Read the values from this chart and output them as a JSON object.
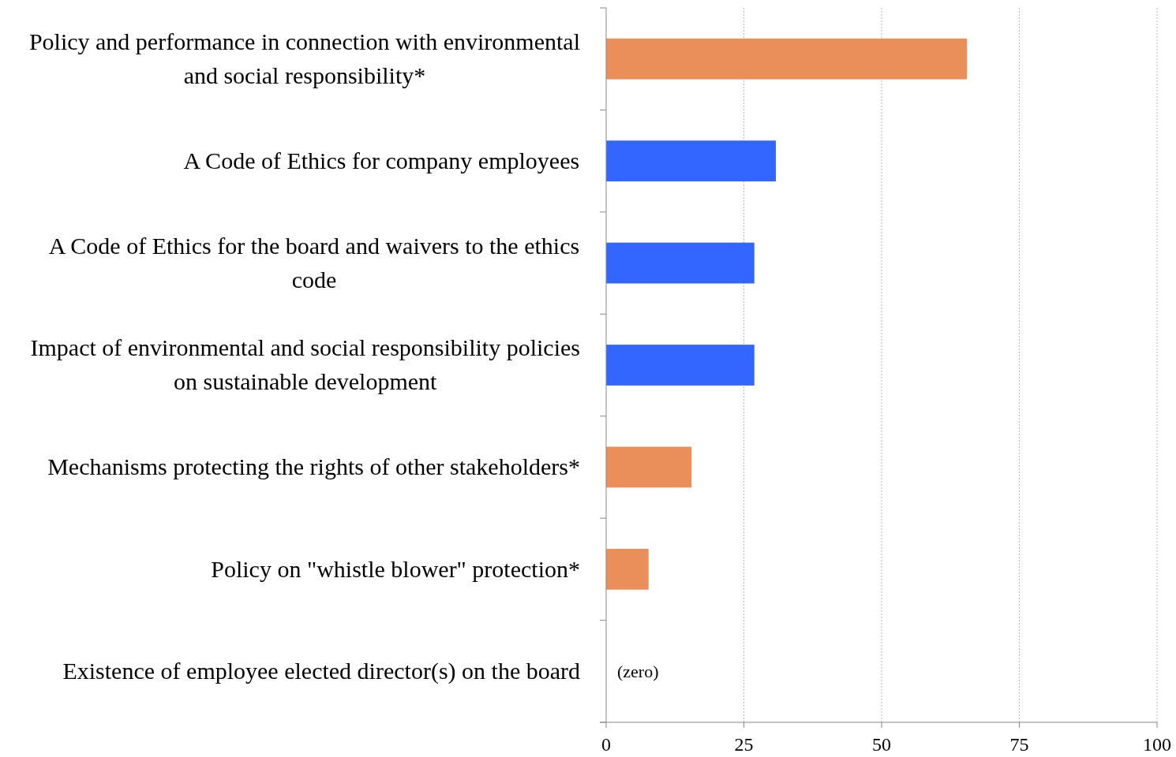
{
  "chart_data": {
    "type": "bar",
    "orientation": "horizontal",
    "categories": [
      "Policy and performance in connection with environmental and social responsibility*",
      "A Code of Ethics for company employees",
      "A Code of Ethics for the board and waivers to the ethics code",
      "Impact of environmental and social responsibility policies on sustainable development",
      "Mechanisms protecting the rights of other stakeholders*",
      "Policy on \"whistle blower\" protection*",
      "Existence of employee elected director(s) on the board"
    ],
    "values": [
      65.5,
      30.8,
      26.9,
      26.9,
      15.5,
      7.7,
      0
    ],
    "colors": [
      "#eb8f5a",
      "#3366ff",
      "#3366ff",
      "#3366ff",
      "#eb8f5a",
      "#eb8f5a",
      "#eb8f5a"
    ],
    "xlim": [
      0,
      100
    ],
    "xticks": [
      0,
      25,
      50,
      75,
      100
    ],
    "grid": "x",
    "annotations": [
      {
        "text": "(zero)",
        "x": 0,
        "y": "Existence of employee elected director(s) on the board"
      }
    ]
  }
}
